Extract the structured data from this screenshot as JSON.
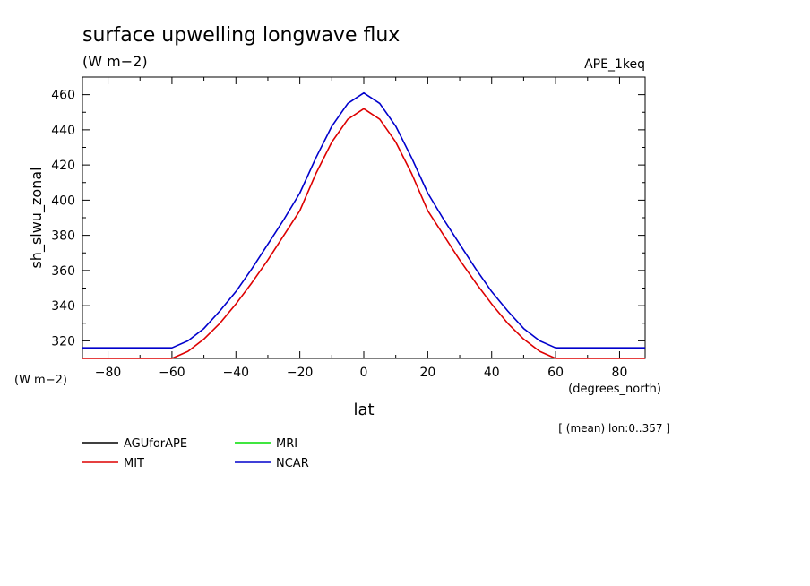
{
  "header": {
    "title": "surface upwelling longwave flux",
    "units": "(W m−2)",
    "experiment": "APE_1keq",
    "y_units_corner": "(W m−2)",
    "x_units": "(degrees_north)",
    "note": "[ (mean) lon:0..357 ]"
  },
  "chart_data": {
    "type": "line",
    "title": "surface upwelling longwave flux",
    "xlabel": "lat",
    "ylabel": "sh_slwu_zonal",
    "xlim": [
      -88,
      88
    ],
    "ylim": [
      310,
      470
    ],
    "x_ticks": [
      -80,
      -60,
      -40,
      -20,
      0,
      20,
      40,
      60,
      80
    ],
    "y_ticks": [
      320,
      340,
      360,
      380,
      400,
      420,
      440,
      460
    ],
    "legend_position": "below-left",
    "series": [
      {
        "name": "AGUforAPE",
        "color": "#000000",
        "x": [],
        "y": []
      },
      {
        "name": "MRI",
        "color": "#00dd00",
        "x": [],
        "y": []
      },
      {
        "name": "MIT",
        "color": "#dd0000",
        "x": [
          -88,
          -80,
          -70,
          -60,
          -55,
          -50,
          -45,
          -40,
          -35,
          -30,
          -25,
          -20,
          -15,
          -10,
          -5,
          0,
          5,
          10,
          15,
          20,
          25,
          30,
          35,
          40,
          45,
          50,
          55,
          60,
          70,
          80,
          88
        ],
        "y": [
          310,
          310,
          310,
          310,
          314,
          321,
          330,
          341,
          353,
          366,
          380,
          394,
          415,
          433,
          446,
          452,
          446,
          433,
          415,
          394,
          380,
          366,
          353,
          341,
          330,
          321,
          314,
          310,
          310,
          310,
          310
        ]
      },
      {
        "name": "NCAR",
        "color": "#0000cc",
        "x": [
          -88,
          -80,
          -70,
          -60,
          -55,
          -50,
          -45,
          -40,
          -35,
          -30,
          -25,
          -20,
          -15,
          -10,
          -5,
          0,
          5,
          10,
          15,
          20,
          25,
          30,
          35,
          40,
          45,
          50,
          55,
          60,
          70,
          80,
          88
        ],
        "y": [
          316,
          316,
          316,
          316,
          320,
          327,
          337,
          348,
          361,
          375,
          389,
          404,
          424,
          442,
          455,
          461,
          455,
          442,
          424,
          404,
          389,
          375,
          361,
          348,
          337,
          327,
          320,
          316,
          316,
          316,
          316
        ]
      }
    ]
  }
}
